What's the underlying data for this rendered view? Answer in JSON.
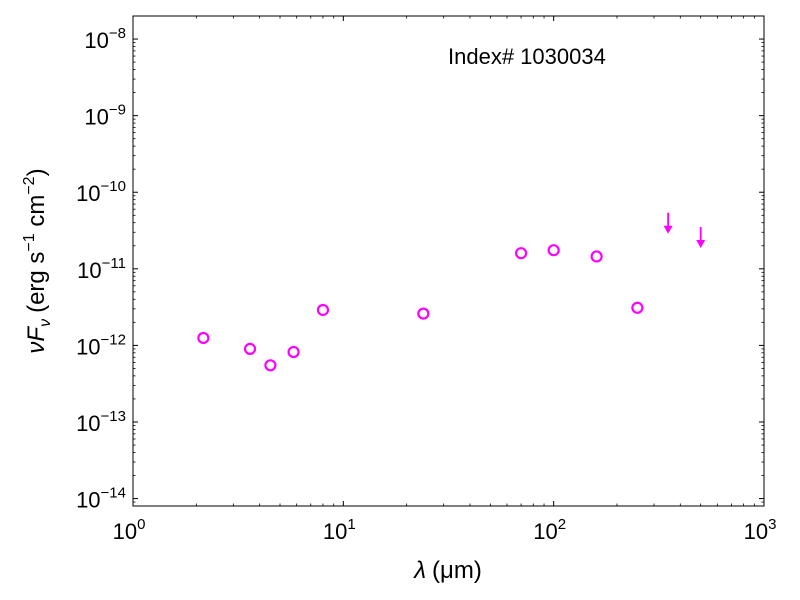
{
  "chart_data": {
    "type": "scatter",
    "annotation": "Index# 1030034",
    "xlabel": {
      "symbol": "λ",
      "unit": "(μm)"
    },
    "ylabel": {
      "prefix": "ν",
      "symbol": "F",
      "sub": "ν",
      "unit_a": "(erg s",
      "exp_a": "−1",
      "unit_b": " cm",
      "exp_b": "−2",
      "unit_c": ")"
    },
    "xscale": "log",
    "yscale": "log",
    "xlim": [
      1,
      1000
    ],
    "ylim": [
      8e-15,
      2e-08
    ],
    "x_ticks": [
      {
        "value": 1,
        "base": "10",
        "exp": "0"
      },
      {
        "value": 10,
        "base": "10",
        "exp": "1"
      },
      {
        "value": 100,
        "base": "10",
        "exp": "2"
      },
      {
        "value": 1000,
        "base": "10",
        "exp": "3"
      }
    ],
    "y_ticks": [
      {
        "value": 1e-14,
        "base": "10",
        "exp": "−14"
      },
      {
        "value": 1e-13,
        "base": "10",
        "exp": "−13"
      },
      {
        "value": 1e-12,
        "base": "10",
        "exp": "−12"
      },
      {
        "value": 1e-11,
        "base": "10",
        "exp": "−11"
      },
      {
        "value": 1e-10,
        "base": "10",
        "exp": "−10"
      },
      {
        "value": 1e-09,
        "base": "10",
        "exp": "−9"
      },
      {
        "value": 1e-08,
        "base": "10",
        "exp": "−8"
      }
    ],
    "grid": false,
    "color": "#ff00ff",
    "series": [
      {
        "marker": "open-circle",
        "points": [
          {
            "x": 2.16,
            "y": 1.25e-12
          },
          {
            "x": 3.6,
            "y": 9e-13
          },
          {
            "x": 4.5,
            "y": 5.5e-13
          },
          {
            "x": 5.8,
            "y": 8.2e-13
          },
          {
            "x": 8.0,
            "y": 2.9e-12
          },
          {
            "x": 24,
            "y": 2.6e-12
          },
          {
            "x": 70,
            "y": 1.6e-11
          },
          {
            "x": 100,
            "y": 1.75e-11
          },
          {
            "x": 160,
            "y": 1.45e-11
          },
          {
            "x": 250,
            "y": 3.1e-12
          }
        ]
      },
      {
        "marker": "upper-limit-arrow",
        "points": [
          {
            "x": 350,
            "y": 4e-11
          },
          {
            "x": 500,
            "y": 2.6e-11
          }
        ]
      }
    ]
  }
}
